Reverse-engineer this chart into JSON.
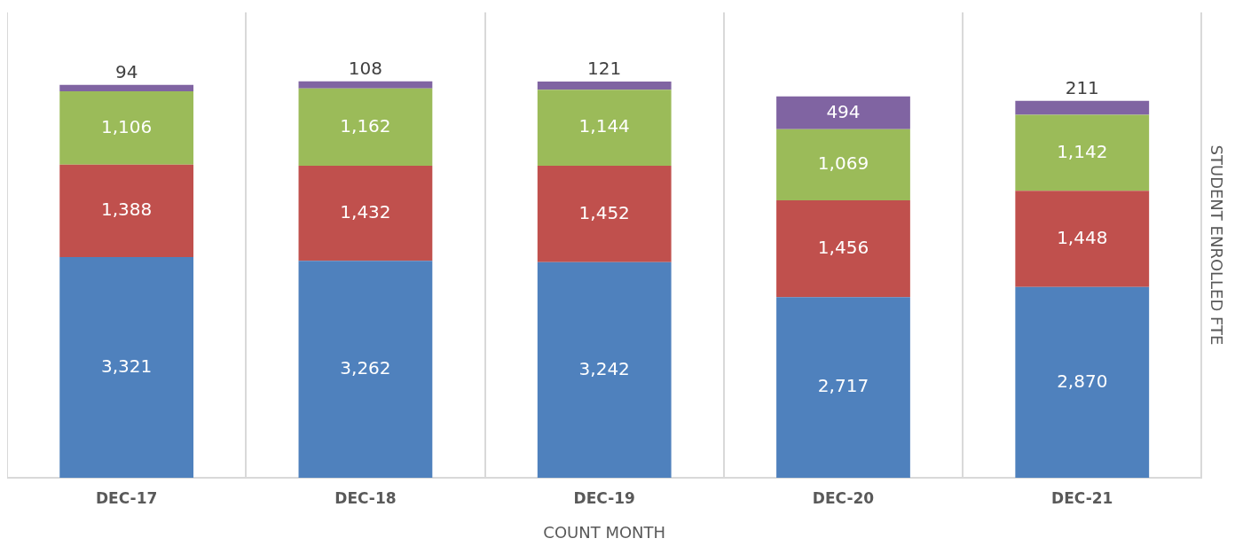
{
  "chart_data": {
    "type": "bar",
    "stacked": true,
    "xlabel": "COUNT MONTH",
    "ylabel": "STUDENT ENROLLED FTE",
    "categories": [
      "DEC-17",
      "DEC-18",
      "DEC-19",
      "DEC-20",
      "DEC-21"
    ],
    "series": [
      {
        "color": "#4f81bd",
        "values": [
          3321,
          3262,
          3242,
          2717,
          2870
        ],
        "value_labels": [
          "3,321",
          "3,262",
          "3,242",
          "2,717",
          "2,870"
        ]
      },
      {
        "color": "#c0504d",
        "values": [
          1388,
          1432,
          1452,
          1456,
          1448
        ],
        "value_labels": [
          "1,388",
          "1,432",
          "1,452",
          "1,456",
          "1,448"
        ]
      },
      {
        "color": "#9bbb59",
        "values": [
          1106,
          1162,
          1144,
          1069,
          1142
        ],
        "value_labels": [
          "1,106",
          "1,162",
          "1,144",
          "1,069",
          "1,142"
        ]
      },
      {
        "color": "#8064a2",
        "values": [
          94,
          108,
          121,
          494,
          211
        ],
        "value_labels": [
          "94",
          "108",
          "121",
          "494",
          "211"
        ]
      }
    ],
    "ylim": [
      0,
      7000
    ],
    "tick_labels": "x",
    "grid": "x",
    "legend": false
  }
}
